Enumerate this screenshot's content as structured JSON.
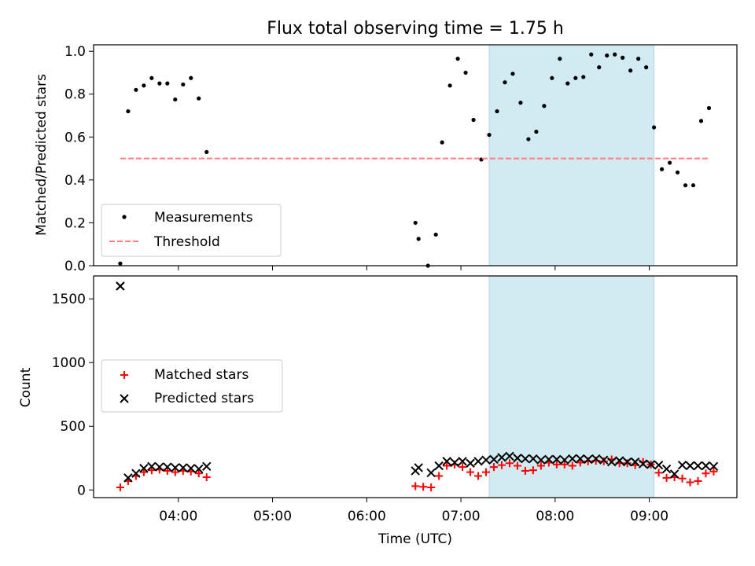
{
  "chart_data": [
    {
      "type": "scatter",
      "title": "Flux total observing time = 1.75 h",
      "xlabel": "",
      "ylabel": "Matched/Predicted stars",
      "xlim_hours": [
        3.1,
        9.93
      ],
      "ylim": [
        0,
        1.03
      ],
      "yticks": [
        0.0,
        0.2,
        0.4,
        0.6,
        0.8,
        1.0
      ],
      "ytick_labels": [
        "0.0",
        "0.2",
        "0.4",
        "0.6",
        "0.8",
        "1.0"
      ],
      "shaded_interval": {
        "start": "07:18",
        "end": "09:03",
        "color": "#add8e6"
      },
      "legend_position": "lower-left",
      "series": [
        {
          "name": "Measurements",
          "marker": "dot",
          "color": "#000000",
          "x": [
            "03:23",
            "03:28",
            "03:33",
            "03:38",
            "03:43",
            "03:48",
            "03:53",
            "03:58",
            "04:03",
            "04:08",
            "04:13",
            "04:18",
            "06:31",
            "06:33",
            "06:39",
            "06:44",
            "06:48",
            "06:53",
            "06:58",
            "07:03",
            "07:08",
            "07:13",
            "07:18",
            "07:23",
            "07:28",
            "07:33",
            "07:38",
            "07:43",
            "07:48",
            "07:53",
            "07:58",
            "08:03",
            "08:08",
            "08:13",
            "08:18",
            "08:23",
            "08:28",
            "08:33",
            "08:38",
            "08:43",
            "08:48",
            "08:53",
            "08:58",
            "09:03",
            "09:08",
            "09:13",
            "09:18",
            "09:23",
            "09:28",
            "09:33",
            "09:38"
          ],
          "y": [
            0.01,
            0.72,
            0.82,
            0.84,
            0.875,
            0.85,
            0.85,
            0.775,
            0.845,
            0.875,
            0.78,
            0.53,
            0.2,
            0.125,
            0.0,
            0.145,
            0.575,
            0.84,
            0.965,
            0.9,
            0.68,
            0.495,
            0.61,
            0.72,
            0.855,
            0.895,
            0.76,
            0.59,
            0.625,
            0.745,
            0.875,
            0.965,
            0.85,
            0.875,
            0.88,
            0.985,
            0.925,
            0.98,
            0.985,
            0.97,
            0.91,
            0.965,
            0.925,
            0.645,
            0.45,
            0.48,
            0.435,
            0.375,
            0.375,
            0.675,
            0.735
          ]
        },
        {
          "name": "Threshold",
          "marker": "dashed-line",
          "color": "#ff7f7f",
          "x": [
            "03:23",
            "09:38"
          ],
          "y": [
            0.5,
            0.5
          ]
        }
      ]
    },
    {
      "type": "scatter",
      "title": "",
      "xlabel": "Time (UTC)",
      "ylabel": "Count",
      "xlim_hours": [
        3.1,
        9.93
      ],
      "ylim": [
        -60,
        1680
      ],
      "yticks": [
        0,
        500,
        1000,
        1500
      ],
      "ytick_labels": [
        "0",
        "500",
        "1000",
        "1500"
      ],
      "xticks": [
        "04:00",
        "05:00",
        "06:00",
        "07:00",
        "08:00",
        "09:00"
      ],
      "shaded_interval": {
        "start": "07:18",
        "end": "09:03",
        "color": "#add8e6"
      },
      "legend_position": "center-left",
      "series": [
        {
          "name": "Matched stars",
          "marker": "plus",
          "color": "#ff0000",
          "x": [
            "03:23",
            "03:28",
            "03:33",
            "03:38",
            "03:43",
            "03:48",
            "03:53",
            "03:58",
            "04:03",
            "04:08",
            "04:13",
            "04:18",
            "06:31",
            "06:36",
            "06:41",
            "06:46",
            "06:51",
            "06:56",
            "07:01",
            "07:06",
            "07:11",
            "07:16",
            "07:21",
            "07:26",
            "07:31",
            "07:36",
            "07:41",
            "07:46",
            "07:51",
            "07:56",
            "08:01",
            "08:06",
            "08:11",
            "08:16",
            "08:21",
            "08:26",
            "08:31",
            "08:36",
            "08:41",
            "08:46",
            "08:51",
            "08:56",
            "09:01",
            "09:06",
            "09:11",
            "09:16",
            "09:21",
            "09:26",
            "09:31",
            "09:36",
            "09:41"
          ],
          "y": [
            20,
            70,
            110,
            140,
            155,
            160,
            150,
            140,
            150,
            145,
            130,
            100,
            30,
            25,
            20,
            110,
            190,
            200,
            180,
            140,
            110,
            140,
            180,
            195,
            210,
            190,
            150,
            155,
            190,
            215,
            200,
            200,
            190,
            215,
            225,
            230,
            225,
            240,
            210,
            210,
            195,
            220,
            200,
            135,
            95,
            100,
            90,
            60,
            70,
            130,
            145
          ]
        },
        {
          "name": "Predicted stars",
          "marker": "x",
          "color": "#000000",
          "x": [
            "03:23",
            "03:28",
            "03:33",
            "03:38",
            "03:43",
            "03:48",
            "03:53",
            "03:58",
            "04:03",
            "04:08",
            "04:13",
            "04:18",
            "03:23",
            "06:31",
            "06:33",
            "06:41",
            "06:46",
            "06:51",
            "06:56",
            "07:01",
            "07:06",
            "07:11",
            "07:16",
            "07:21",
            "07:26",
            "07:31",
            "07:36",
            "07:41",
            "07:46",
            "07:51",
            "07:56",
            "08:01",
            "08:06",
            "08:11",
            "08:16",
            "08:21",
            "08:26",
            "08:31",
            "08:36",
            "08:41",
            "08:46",
            "08:51",
            "08:56",
            "09:01",
            "09:06",
            "09:11",
            "09:16",
            "09:21",
            "09:26",
            "09:31",
            "09:36",
            "09:41"
          ],
          "y": [
            1600,
            95,
            130,
            170,
            185,
            180,
            180,
            175,
            175,
            170,
            165,
            185,
            1600,
            150,
            175,
            135,
            190,
            225,
            215,
            225,
            210,
            225,
            235,
            240,
            255,
            265,
            250,
            245,
            245,
            235,
            240,
            240,
            235,
            245,
            245,
            240,
            245,
            235,
            220,
            230,
            220,
            220,
            205,
            200,
            195,
            165,
            125,
            195,
            190,
            190,
            190,
            185
          ]
        }
      ]
    }
  ]
}
